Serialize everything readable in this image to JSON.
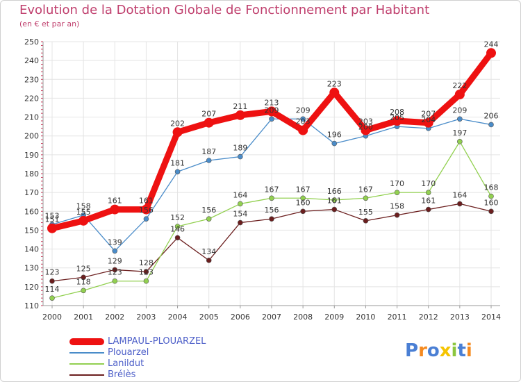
{
  "chart_data": {
    "type": "line",
    "title": "Evolution de la Dotation Globale de Fonctionnement par Habitant",
    "subtitle": "(en € et par an)",
    "xlabel": "",
    "ylabel": "",
    "ylim": [
      110,
      250
    ],
    "y_ticks": [
      110,
      120,
      130,
      140,
      150,
      160,
      170,
      180,
      190,
      200,
      210,
      220,
      230,
      240,
      250
    ],
    "categories": [
      "2000",
      "2001",
      "2002",
      "2003",
      "2004",
      "2005",
      "2006",
      "2007",
      "2008",
      "2009",
      "2010",
      "2011",
      "2012",
      "2013",
      "2014"
    ],
    "grid": true,
    "legend_position": "bottom-left",
    "series": [
      {
        "name": "Brélès",
        "color": "#6b1e1e",
        "values": [
          123,
          125,
          129,
          128,
          146,
          134,
          154,
          156,
          160,
          161,
          155,
          158,
          161,
          164,
          160
        ],
        "labels": [
          "123",
          "125",
          "129",
          "128",
          "146",
          "134",
          "154",
          "156",
          "160",
          "161",
          "155",
          "158",
          "161",
          "164",
          "160"
        ]
      },
      {
        "name": "Lanildut",
        "color": "#92d050",
        "values": [
          114,
          118,
          123,
          123,
          152,
          156,
          164,
          167,
          167,
          166,
          167,
          170,
          170,
          197,
          168
        ],
        "labels": [
          "114",
          "118",
          "123",
          "123",
          "152",
          "156",
          "164",
          "167",
          "167",
          "166",
          "167",
          "170",
          "170",
          "197",
          "168"
        ]
      },
      {
        "name": "Plouarzel",
        "color": "#4a8cc9",
        "values": [
          153,
          158,
          139,
          156,
          181,
          187,
          189,
          209,
          209,
          196,
          200,
          205,
          204,
          209,
          206
        ],
        "labels": [
          "153",
          "158",
          "139",
          "156",
          "181",
          "187",
          "189",
          "209",
          "209",
          "196",
          "200",
          "205",
          "204",
          "209",
          "206"
        ]
      },
      {
        "name": "LAMPAUL-PLOUARZEL",
        "color": "#ee1111",
        "values": [
          151,
          155,
          161,
          161,
          202,
          207,
          211,
          213,
          203,
          223,
          203,
          208,
          207,
          222,
          244
        ],
        "labels": [
          "151",
          "155",
          "161",
          "161",
          "202",
          "207",
          "211",
          "213",
          "203",
          "223",
          "203",
          "208",
          "207",
          "222",
          "244"
        ]
      }
    ]
  },
  "legend": [
    {
      "label": "LAMPAUL-PLOUARZEL",
      "color": "#ee1111",
      "thick": true
    },
    {
      "label": "Plouarzel",
      "color": "#4a8cc9",
      "thick": false
    },
    {
      "label": "Lanildut",
      "color": "#92d050",
      "thick": false
    },
    {
      "label": "Brélès",
      "color": "#6b1e1e",
      "thick": false
    }
  ],
  "logo": {
    "text": "Proxiti",
    "letters": [
      "P",
      "r",
      "o",
      "x",
      "i",
      "t",
      "i"
    ],
    "colors": [
      "#4a7fd4",
      "#f58a1f",
      "#4a7fd4",
      "#f5c400",
      "#8cc63f",
      "#4a7fd4",
      "#f58a1f"
    ]
  }
}
